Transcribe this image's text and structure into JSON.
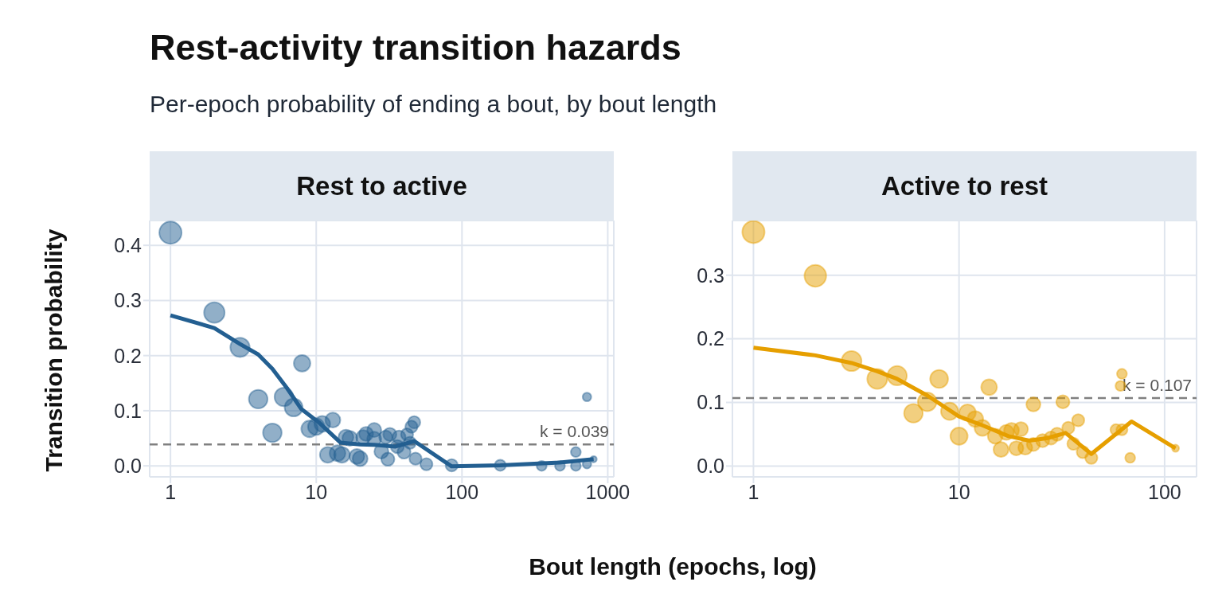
{
  "chart_data": [
    {
      "type": "bubble",
      "title": "Rest to active",
      "xlabel": "Bout length (epochs, log)",
      "ylabel": "Transition probability",
      "annotations": [
        "Rest-activity transition hazards",
        "Per-epoch probability of ending a bout, by bout length"
      ],
      "log": "x",
      "xlim": [
        0.72,
        1100
      ],
      "ylim": [
        -0.02,
        0.445
      ],
      "xticks": [
        1,
        10,
        100,
        1000
      ],
      "yticks": [
        {
          "value": 0,
          "label": "0.0"
        },
        0.1,
        0.2,
        0.3,
        0.4
      ],
      "grid": true,
      "ref_lines": [
        {
          "axis": "y",
          "value": 0.039,
          "label": "k = 0.039",
          "color": "#808080",
          "line_style": "dashed"
        }
      ],
      "series": [
        {
          "color": "#235f91",
          "x": [
            1,
            2,
            3,
            4,
            5,
            6,
            7,
            8,
            9,
            10,
            11,
            12,
            13,
            14,
            15,
            16,
            17,
            19,
            20,
            21,
            22,
            25,
            25,
            28,
            30,
            31,
            32,
            36,
            37,
            40,
            42,
            44,
            45,
            47,
            48,
            57,
            85,
            183,
            352,
            470,
            604,
            604,
            720,
            720,
            800
          ],
          "values": [
            0.423,
            0.278,
            0.215,
            0.121,
            0.06,
            0.125,
            0.106,
            0.186,
            0.067,
            0.071,
            0.076,
            0.02,
            0.083,
            0.023,
            0.02,
            0.052,
            0.05,
            0.017,
            0.013,
            0.052,
            0.058,
            0.065,
            0.049,
            0.026,
            0.052,
            0.012,
            0.057,
            0.035,
            0.052,
            0.025,
            0.057,
            0.042,
            0.071,
            0.079,
            0.013,
            0.003,
            0.001,
            0.001,
            0,
            0,
            0.025,
            0,
            0.125,
            0.003,
            0.012
          ],
          "sizes": [
            1,
            0.85,
            0.75,
            0.7,
            0.7,
            0.7,
            0.65,
            0.55,
            0.55,
            0.55,
            0.5,
            0.5,
            0.45,
            0.5,
            0.5,
            0.45,
            0.45,
            0.45,
            0.45,
            0.4,
            0.4,
            0.4,
            0.4,
            0.4,
            0.35,
            0.35,
            0.35,
            0.35,
            0.35,
            0.35,
            0.3,
            0.3,
            0.3,
            0.3,
            0.3,
            0.3,
            0.3,
            0.25,
            0.2,
            0.2,
            0.2,
            0.2,
            0.15,
            0.15,
            0.08
          ]
        },
        {
          "type": "line",
          "color": "#235f91",
          "x": [
            1,
            2,
            3,
            4,
            5,
            6.3,
            7.9,
            10.4,
            14.7,
            20,
            25,
            35,
            47,
            85,
            183,
            470,
            800
          ],
          "values": [
            0.273,
            0.25,
            0.221,
            0.202,
            0.176,
            0.141,
            0.103,
            0.079,
            0.042,
            0.039,
            0.038,
            0.035,
            0.045,
            -0.001,
            0.001,
            0.006,
            0.012
          ]
        }
      ]
    },
    {
      "type": "bubble",
      "title": "Active to rest",
      "log": "x",
      "xlim": [
        0.79,
        143
      ],
      "ylim": [
        -0.017,
        0.386
      ],
      "xticks": [
        1,
        10,
        100
      ],
      "yticks": [
        {
          "value": 0,
          "label": "0.0"
        },
        0.1,
        0.2,
        0.3
      ],
      "grid": true,
      "ref_lines": [
        {
          "axis": "y",
          "value": 0.107,
          "label": "k = 0.107",
          "color": "#808080",
          "line_style": "dashed"
        }
      ],
      "series": [
        {
          "color": "#e69f00",
          "x": [
            1,
            2,
            3,
            4,
            5,
            6,
            7,
            8,
            9,
            10,
            11,
            12,
            13,
            14,
            15,
            16,
            17,
            18,
            19,
            20,
            21,
            23,
            23,
            25.5,
            28,
            30,
            32,
            34,
            36,
            38,
            40,
            44,
            58,
            61,
            62,
            62,
            68,
            113
          ],
          "values": [
            0.368,
            0.299,
            0.165,
            0.137,
            0.142,
            0.083,
            0.101,
            0.137,
            0.086,
            0.047,
            0.084,
            0.074,
            0.06,
            0.124,
            0.047,
            0.026,
            0.053,
            0.056,
            0.028,
            0.058,
            0.029,
            0.034,
            0.097,
            0.04,
            0.044,
            0.05,
            0.101,
            0.06,
            0.035,
            0.072,
            0.022,
            0.013,
            0.057,
            0.126,
            0.145,
            0.057,
            0.013,
            0.028
          ],
          "sizes": [
            1,
            0.95,
            0.8,
            0.8,
            0.75,
            0.7,
            0.7,
            0.65,
            0.6,
            0.6,
            0.55,
            0.5,
            0.5,
            0.5,
            0.45,
            0.45,
            0.45,
            0.45,
            0.4,
            0.4,
            0.4,
            0.35,
            0.4,
            0.35,
            0.35,
            0.35,
            0.35,
            0.3,
            0.3,
            0.3,
            0.3,
            0.3,
            0.25,
            0.2,
            0.2,
            0.25,
            0.2,
            0.1
          ]
        },
        {
          "type": "line",
          "color": "#e69f00",
          "x": [
            1,
            2,
            3,
            4,
            5,
            7,
            10,
            13,
            17.4,
            22,
            27,
            33,
            44,
            69,
            113
          ],
          "values": [
            0.186,
            0.174,
            0.162,
            0.149,
            0.137,
            0.111,
            0.078,
            0.064,
            0.047,
            0.04,
            0.044,
            0.052,
            0.019,
            0.07,
            0.028
          ]
        }
      ]
    }
  ]
}
